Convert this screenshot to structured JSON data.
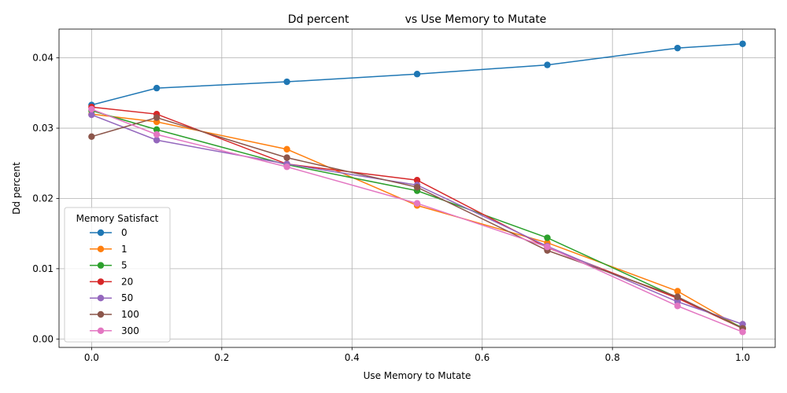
{
  "chart_data": {
    "type": "line",
    "title": "Dd percent                vs Use Memory to Mutate",
    "xlabel": "Use Memory to Mutate",
    "ylabel": "Dd percent",
    "xlim": [
      -0.05,
      1.05
    ],
    "ylim": [
      -0.0012,
      0.0441
    ],
    "x_ticks": [
      0.0,
      0.2,
      0.4,
      0.6,
      0.8,
      1.0
    ],
    "x_tick_labels": [
      "0.0",
      "0.2",
      "0.4",
      "0.6",
      "0.8",
      "1.0"
    ],
    "y_ticks": [
      0.0,
      0.01,
      0.02,
      0.03,
      0.04
    ],
    "y_tick_labels": [
      "0.00",
      "0.01",
      "0.02",
      "0.03",
      "0.04"
    ],
    "grid": true,
    "legend": {
      "title": "Memory Satisfact",
      "placement": "lower-left"
    },
    "x": [
      0.0,
      0.1,
      0.3,
      0.5,
      0.7,
      0.9,
      1.0
    ],
    "series": [
      {
        "name": "0",
        "color": "#1f77b4",
        "values": [
          0.0333,
          0.0357,
          0.0366,
          0.0377,
          0.039,
          0.0414,
          0.042
        ]
      },
      {
        "name": "1",
        "color": "#ff7f0e",
        "values": [
          0.032,
          0.0309,
          0.027,
          0.019,
          0.0137,
          0.0068,
          0.0015
        ]
      },
      {
        "name": "5",
        "color": "#2ca02c",
        "values": [
          0.0325,
          0.0298,
          0.0248,
          0.0211,
          0.0144,
          0.0059,
          0.0016
        ]
      },
      {
        "name": "20",
        "color": "#d62728",
        "values": [
          0.033,
          0.032,
          0.0249,
          0.0226,
          0.013,
          0.0058,
          0.0015
        ]
      },
      {
        "name": "50",
        "color": "#9467bd",
        "values": [
          0.0319,
          0.0283,
          0.0249,
          0.0219,
          0.0132,
          0.0053,
          0.0021
        ]
      },
      {
        "name": "100",
        "color": "#8c564b",
        "values": [
          0.0288,
          0.0315,
          0.0258,
          0.0216,
          0.0126,
          0.006,
          0.0015
        ]
      },
      {
        "name": "300",
        "color": "#e377c2",
        "values": [
          0.0327,
          0.0291,
          0.0245,
          0.0193,
          0.0131,
          0.0047,
          0.001
        ]
      }
    ]
  }
}
